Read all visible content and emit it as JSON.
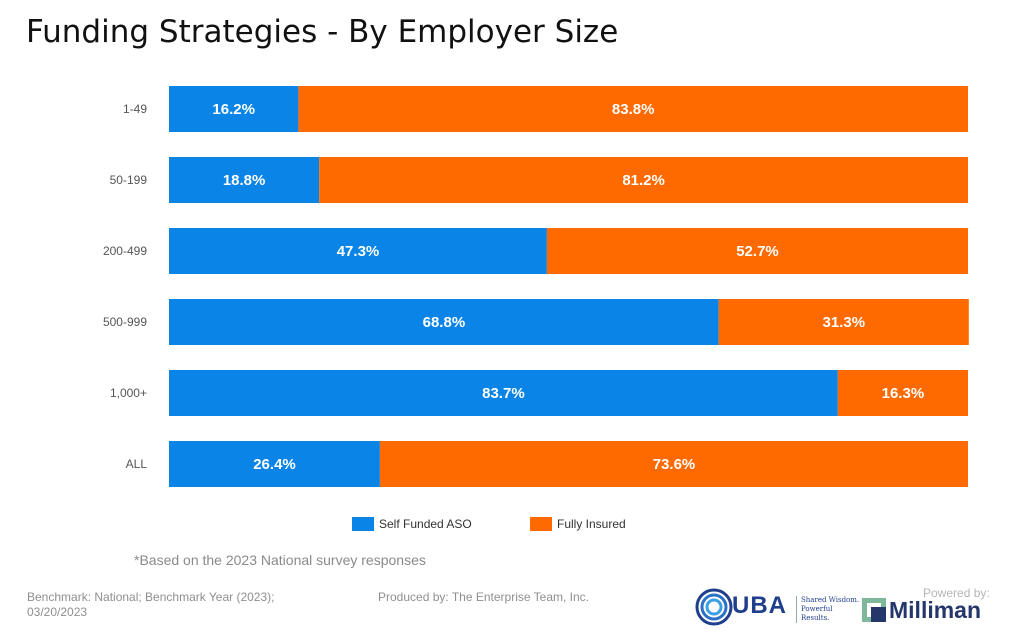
{
  "title": "Funding Strategies - By Employer Size",
  "chart_data": {
    "type": "bar",
    "orientation": "horizontal",
    "stacked": true,
    "categories": [
      "1-49",
      "50-199",
      "200-499",
      "500-999",
      "1,000+",
      "ALL"
    ],
    "series": [
      {
        "name": "Self Funded ASO",
        "color": "#0A84E6",
        "values": [
          16.2,
          18.8,
          47.3,
          68.8,
          83.7,
          26.4
        ],
        "labels": [
          "16.2%",
          "18.8%",
          "47.3%",
          "68.8%",
          "83.7%",
          "26.4%"
        ]
      },
      {
        "name": "Fully Insured",
        "color": "#FF6A00",
        "values": [
          83.8,
          81.2,
          52.7,
          31.3,
          16.3,
          73.6
        ],
        "labels": [
          "83.8%",
          "81.2%",
          "52.7%",
          "31.3%",
          "16.3%",
          "73.6%"
        ]
      }
    ],
    "xlim": [
      0,
      100
    ],
    "grid": false,
    "legend": "bottom"
  },
  "note": "*Based on the 2023 National survey responses",
  "footer": {
    "left": "Benchmark: National; Benchmark Year (2023); 03/20/2023",
    "middle": "Produced by: The Enterprise Team, Inc.",
    "uba_logo_text": "UBA",
    "uba_tagline": "Shared Wisdom. Powerful Results.",
    "powered_by": "Powered by:",
    "milliman_text": "Milliman"
  }
}
